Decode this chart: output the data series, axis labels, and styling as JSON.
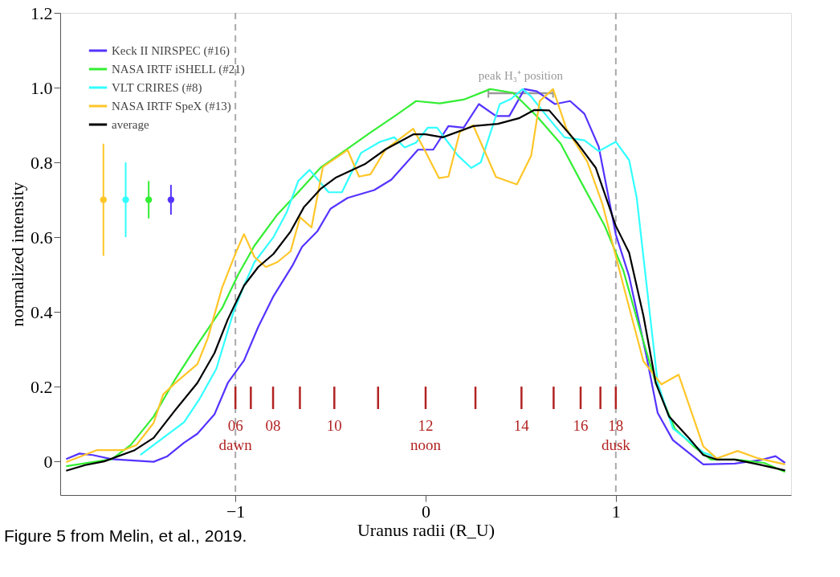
{
  "chart_data": {
    "type": "line",
    "xlabel": "Uranus radii (R_U)",
    "ylabel": "normalized intensity",
    "xlim": [
      -1.9,
      1.9
    ],
    "ylim": [
      -0.09,
      1.2
    ],
    "xticks": [
      {
        "value": -1,
        "label": "−1"
      },
      0,
      1
    ],
    "yticks": [
      0,
      0.2,
      0.4,
      0.6,
      0.8,
      {
        "value": 1,
        "label": "1.0"
      },
      1.2
    ],
    "grid": false,
    "legend": "top left",
    "line_style": "solid",
    "series": [
      {
        "name": "Keck II NIRSPEC (#16)",
        "color": "#5533ff",
        "x": [
          -1.89,
          -1.82,
          -1.75,
          -1.65,
          -1.43,
          -1.36,
          -1.27,
          -1.2,
          -1.11,
          -1.04,
          -0.955,
          -0.88,
          -0.8,
          -0.7,
          -0.65,
          -0.57,
          -0.5,
          -0.41,
          -0.27,
          -0.18,
          -0.04,
          0.04,
          0.12,
          0.2,
          0.28,
          0.37,
          0.44,
          0.52,
          0.585,
          0.68,
          0.76,
          0.835,
          0.91,
          1.0,
          1.07,
          1.16,
          1.22,
          1.3,
          1.46,
          1.625,
          1.765,
          1.84,
          1.89
        ],
        "values": [
          0.006,
          0.021,
          0.017,
          0.006,
          -0.001,
          0.013,
          0.05,
          0.074,
          0.126,
          0.21,
          0.27,
          0.36,
          0.442,
          0.524,
          0.574,
          0.615,
          0.676,
          0.705,
          0.726,
          0.754,
          0.834,
          0.834,
          0.897,
          0.893,
          0.956,
          0.924,
          0.924,
          0.996,
          0.99,
          0.956,
          0.964,
          0.93,
          0.842,
          0.607,
          0.495,
          0.284,
          0.13,
          0.057,
          -0.008,
          -0.006,
          0.004,
          0.014,
          -0.004
        ]
      },
      {
        "name": "NASA IRTF iSHELL (#21)",
        "color": "#33ee33",
        "x": [
          -1.89,
          -1.65,
          -1.55,
          -1.43,
          -1.32,
          -1.19,
          -1.07,
          -0.985,
          -0.9,
          -0.78,
          -0.67,
          -0.55,
          -0.42,
          -0.29,
          -0.165,
          -0.05,
          0.075,
          0.2,
          0.34,
          0.46,
          0.585,
          0.71,
          0.82,
          0.94,
          1.04,
          1.13,
          1.21,
          1.31,
          1.41,
          1.5,
          1.63,
          1.78,
          1.89
        ],
        "values": [
          -0.013,
          0.006,
          0.044,
          0.12,
          0.217,
          0.32,
          0.41,
          0.5,
          0.577,
          0.66,
          0.72,
          0.787,
          0.833,
          0.88,
          0.923,
          0.964,
          0.958,
          0.968,
          0.996,
          0.986,
          0.923,
          0.85,
          0.745,
          0.632,
          0.51,
          0.347,
          0.21,
          0.088,
          0.04,
          0.005,
          0.005,
          -0.004,
          -0.028
        ]
      },
      {
        "name": "VLT CRIRES (#8)",
        "color": "#33ffff",
        "x": [
          -1.5,
          -1.39,
          -1.27,
          -1.19,
          -1.1,
          -1.01,
          -0.955,
          -0.9,
          -0.8,
          -0.73,
          -0.67,
          -0.61,
          -0.51,
          -0.44,
          -0.34,
          -0.24,
          -0.165,
          -0.11,
          -0.05,
          0.012,
          0.06,
          0.17,
          0.24,
          0.29,
          0.39,
          0.45,
          0.51,
          0.555,
          0.65,
          0.73,
          0.835,
          0.91,
          1.0,
          1.07,
          1.11,
          1.22,
          1.3,
          1.46,
          1.52
        ],
        "values": [
          0.017,
          0.059,
          0.105,
          0.166,
          0.248,
          0.4,
          0.47,
          0.533,
          0.6,
          0.667,
          0.75,
          0.78,
          0.72,
          0.72,
          0.825,
          0.855,
          0.867,
          0.84,
          0.853,
          0.893,
          0.893,
          0.818,
          0.785,
          0.8,
          0.956,
          0.97,
          0.996,
          0.976,
          0.916,
          0.867,
          0.859,
          0.83,
          0.855,
          0.806,
          0.705,
          0.21,
          0.088,
          0.024,
          0.013
        ]
      },
      {
        "name": "NASA IRTF SpeX (#13)",
        "color": "#ffc629",
        "x": [
          -1.89,
          -1.73,
          -1.59,
          -1.52,
          -1.43,
          -1.38,
          -1.32,
          -1.2,
          -1.145,
          -1.07,
          -1.0,
          -0.955,
          -0.9,
          -0.84,
          -0.78,
          -0.71,
          -0.66,
          -0.6,
          -0.54,
          -0.41,
          -0.35,
          -0.29,
          -0.21,
          -0.065,
          -0.005,
          0.07,
          0.12,
          0.18,
          0.25,
          0.37,
          0.48,
          0.555,
          0.6,
          0.67,
          0.74,
          0.85,
          0.93,
          1.04,
          1.145,
          1.24,
          1.33,
          1.46,
          1.53,
          1.64,
          1.75,
          1.89
        ],
        "values": [
          -0.002,
          0.03,
          0.03,
          0.044,
          0.103,
          0.179,
          0.208,
          0.26,
          0.33,
          0.465,
          0.556,
          0.608,
          0.547,
          0.52,
          0.533,
          0.562,
          0.653,
          0.626,
          0.788,
          0.833,
          0.762,
          0.768,
          0.835,
          0.89,
          0.833,
          0.758,
          0.762,
          0.882,
          0.899,
          0.761,
          0.741,
          0.818,
          0.964,
          0.996,
          0.89,
          0.802,
          0.688,
          0.47,
          0.268,
          0.206,
          0.232,
          0.04,
          0.008,
          0.028,
          0.008,
          -0.008
        ]
      },
      {
        "name": "average",
        "color": "#000000",
        "x": [
          -1.89,
          -1.79,
          -1.69,
          -1.53,
          -1.43,
          -1.32,
          -1.2,
          -1.11,
          -1.04,
          -0.955,
          -0.88,
          -0.8,
          -0.71,
          -0.64,
          -0.55,
          -0.47,
          -0.32,
          -0.21,
          -0.065,
          0.0,
          0.09,
          0.25,
          0.38,
          0.49,
          0.57,
          0.65,
          0.8,
          0.895,
          1.0,
          1.07,
          1.145,
          1.21,
          1.28,
          1.38,
          1.46,
          1.53,
          1.625,
          1.75,
          1.89
        ],
        "values": [
          -0.025,
          -0.01,
          0.0,
          0.03,
          0.063,
          0.135,
          0.21,
          0.29,
          0.38,
          0.47,
          0.52,
          0.555,
          0.615,
          0.68,
          0.73,
          0.76,
          0.795,
          0.835,
          0.875,
          0.875,
          0.867,
          0.897,
          0.903,
          0.918,
          0.94,
          0.939,
          0.85,
          0.785,
          0.63,
          0.558,
          0.39,
          0.21,
          0.12,
          0.065,
          0.017,
          0.005,
          0.005,
          -0.008,
          -0.024
        ]
      },
      {
        "type": "scatter",
        "marker": "circle",
        "color": "#ffc629",
        "x": [
          -1.694
        ],
        "values": [
          0.7
        ],
        "errors": [
          0.15
        ]
      },
      {
        "type": "scatter",
        "marker": "circle",
        "color": "#33ffff",
        "x": [
          -1.577
        ],
        "values": [
          0.7
        ],
        "errors": [
          0.1
        ]
      },
      {
        "type": "scatter",
        "marker": "circle",
        "color": "#33ee33",
        "x": [
          -1.456
        ],
        "values": [
          0.7
        ],
        "errors": [
          0.05
        ]
      },
      {
        "type": "scatter",
        "marker": "circle",
        "color": "#5533ff",
        "x": [
          -1.339
        ],
        "values": [
          0.7
        ],
        "errors": [
          0.04
        ]
      },
      {
        "type": "line",
        "color": "#999999",
        "x": [
          0.33,
          0.5,
          0.67
        ],
        "values": [
          0.985,
          0.985,
          0.985
        ],
        "errors": [
          0.012,
          null,
          0.012
        ],
        "value_labels": [
          null,
          "peak H₃⁺ position",
          null
        ]
      },
      {
        "type": "bar",
        "color": "#b22222",
        "x": [
          -1.0,
          -0.919,
          -0.802,
          -0.661,
          -0.48,
          -0.25,
          0.0,
          0.262,
          0.504,
          0.673,
          0.815,
          0.919,
          1.0
        ],
        "base": [
          0.14,
          0.14,
          0.14,
          0.14,
          0.14,
          0.14,
          0.14,
          0.14,
          0.14,
          0.14,
          0.14,
          0.14,
          0.14
        ],
        "values": [
          0.06,
          0.06,
          0.06,
          0.06,
          0.06,
          0.06,
          0.06,
          0.06,
          0.06,
          0.06,
          0.06,
          0.06,
          0.06
        ]
      }
    ],
    "ref_lines": [
      {
        "axis": "x",
        "value": -1,
        "color": "#aaaaaa",
        "line_style": "dashed"
      },
      {
        "axis": "x",
        "value": 1,
        "color": "#aaaaaa",
        "line_style": "dashed"
      }
    ],
    "annotations": [
      {
        "text": "06",
        "x": -1.0,
        "y": 0.14
      },
      {
        "text": "08",
        "x": -0.802,
        "y": 0.14
      },
      {
        "text": "10",
        "x": -0.48,
        "y": 0.14
      },
      {
        "text": "12",
        "x": 0.0,
        "y": 0.14
      },
      {
        "text": "14",
        "x": 0.504,
        "y": 0.14
      },
      {
        "text": "16",
        "x": 0.815,
        "y": 0.14
      },
      {
        "text": "18",
        "x": 1.0,
        "y": 0.14
      },
      {
        "text": "dawn",
        "x": -1.0,
        "y": 0.14
      },
      {
        "text": "noon",
        "x": 0.0,
        "y": 0.14
      },
      {
        "text": "dusk",
        "x": 1.0,
        "y": 0.14
      },
      "Figure 5 from Melin, et al., 2019."
    ]
  }
}
